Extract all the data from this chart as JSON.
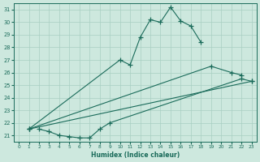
{
  "line1_x": [
    1,
    10,
    11,
    12,
    13,
    14,
    15,
    16,
    17,
    18
  ],
  "line1_y": [
    21.5,
    27.0,
    26.6,
    28.8,
    30.2,
    30.0,
    31.2,
    30.1,
    29.7,
    28.4
  ],
  "line2_x": [
    1,
    19,
    21,
    22
  ],
  "line2_y": [
    21.5,
    26.5,
    26.0,
    25.8
  ],
  "line3_x": [
    1,
    23
  ],
  "line3_y": [
    21.5,
    25.3
  ],
  "line4_x": [
    2,
    3,
    4,
    5,
    6,
    7,
    8,
    9,
    22,
    23
  ],
  "line4_y": [
    21.5,
    21.3,
    21.0,
    20.9,
    20.8,
    20.8,
    21.5,
    22.0,
    25.5,
    25.3
  ],
  "color": "#1a6b5a",
  "bg_color": "#cde8de",
  "grid_color": "#a8cfc2",
  "xlabel": "Humidex (Indice chaleur)",
  "ylim": [
    20.5,
    31.5
  ],
  "xlim": [
    -0.5,
    23.5
  ],
  "yticks": [
    21,
    22,
    23,
    24,
    25,
    26,
    27,
    28,
    29,
    30,
    31
  ],
  "xticks": [
    0,
    1,
    2,
    3,
    4,
    5,
    6,
    7,
    8,
    9,
    10,
    11,
    12,
    13,
    14,
    15,
    16,
    17,
    18,
    19,
    20,
    21,
    22,
    23
  ]
}
